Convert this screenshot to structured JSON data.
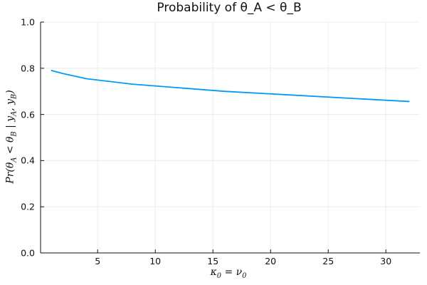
{
  "title": "Probability of θ_A < θ_B",
  "chart_data": {
    "type": "line",
    "title": "Probability of θ_A < θ_B",
    "xlabel": "κ_0 = ν_0",
    "ylabel": "Pr(θ_A < θ_B | y_A, y_B)",
    "x": [
      1,
      2,
      4,
      8,
      16,
      32
    ],
    "y": [
      0.79,
      0.777,
      0.755,
      0.731,
      0.7,
      0.656
    ],
    "xticks": [
      5,
      10,
      15,
      20,
      25,
      30
    ],
    "ytick_labels": [
      "0.0",
      "0.2",
      "0.4",
      "0.6",
      "0.8",
      "1.0"
    ],
    "ytick_values": [
      0.0,
      0.2,
      0.4,
      0.6,
      0.8,
      1.0
    ],
    "xlim": [
      0.05,
      32.95
    ],
    "ylim": [
      0.0,
      1.0
    ],
    "grid": true,
    "legend": "none",
    "line_color": "#009af9",
    "grid_color": "#ececec",
    "axis_color": "#111111",
    "text_color": "#111111",
    "background_color": "#ffffff"
  }
}
